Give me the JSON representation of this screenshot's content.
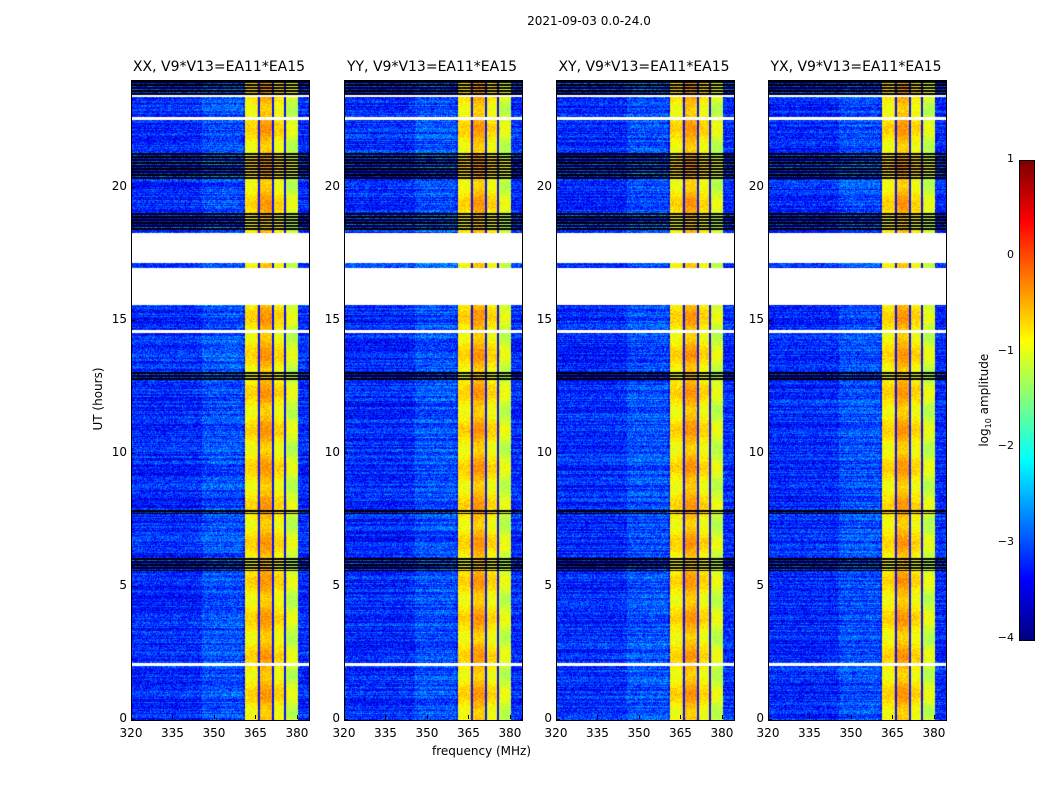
{
  "chart_data": {
    "type": "heatmap",
    "title": "2021-09-03 0.0-24.0",
    "xlabel": "frequency (MHz)",
    "ylabel": "UT (hours)",
    "xlim": [
      320,
      384
    ],
    "ylim": [
      0,
      24
    ],
    "xticks": [
      "320",
      "335",
      "350",
      "365",
      "380"
    ],
    "yticks": [
      "0",
      "5",
      "10",
      "15",
      "20"
    ],
    "panels": [
      {
        "title": "XX, V9*V13=EA11*EA15"
      },
      {
        "title": "YY, V9*V13=EA11*EA15"
      },
      {
        "title": "XY, V9*V13=EA11*EA15"
      },
      {
        "title": "YX, V9*V13=EA11*EA15"
      }
    ],
    "background_log_amplitude": -3.2,
    "bright_band_MHz": [
      360.5,
      380
    ],
    "bright_band_log_amplitude": -0.8,
    "band_dark_lines_MHz": [
      365.8,
      370.8,
      375.1
    ],
    "flagged_white_hours": [
      [
        15.6,
        17.0
      ],
      [
        14.55,
        14.65
      ],
      [
        22.55,
        22.65
      ],
      [
        2.05,
        2.15
      ],
      [
        17.2,
        18.3
      ],
      [
        23.4,
        23.5
      ]
    ],
    "flagged_black_hours": [
      [
        20.3,
        21.3
      ],
      [
        18.4,
        19.1
      ],
      [
        12.8,
        13.1
      ],
      [
        7.75,
        7.95
      ],
      [
        5.6,
        6.1
      ],
      [
        23.5,
        24.0
      ]
    ],
    "colorbar": {
      "label": "log10 amplitude",
      "label_main": "log",
      "label_sub": "10",
      "label_rest": " amplitude",
      "range": [
        -4,
        1
      ],
      "ticks": [
        "1",
        "0",
        "−1",
        "−2",
        "−3",
        "−4"
      ],
      "colormap": "jet"
    }
  }
}
